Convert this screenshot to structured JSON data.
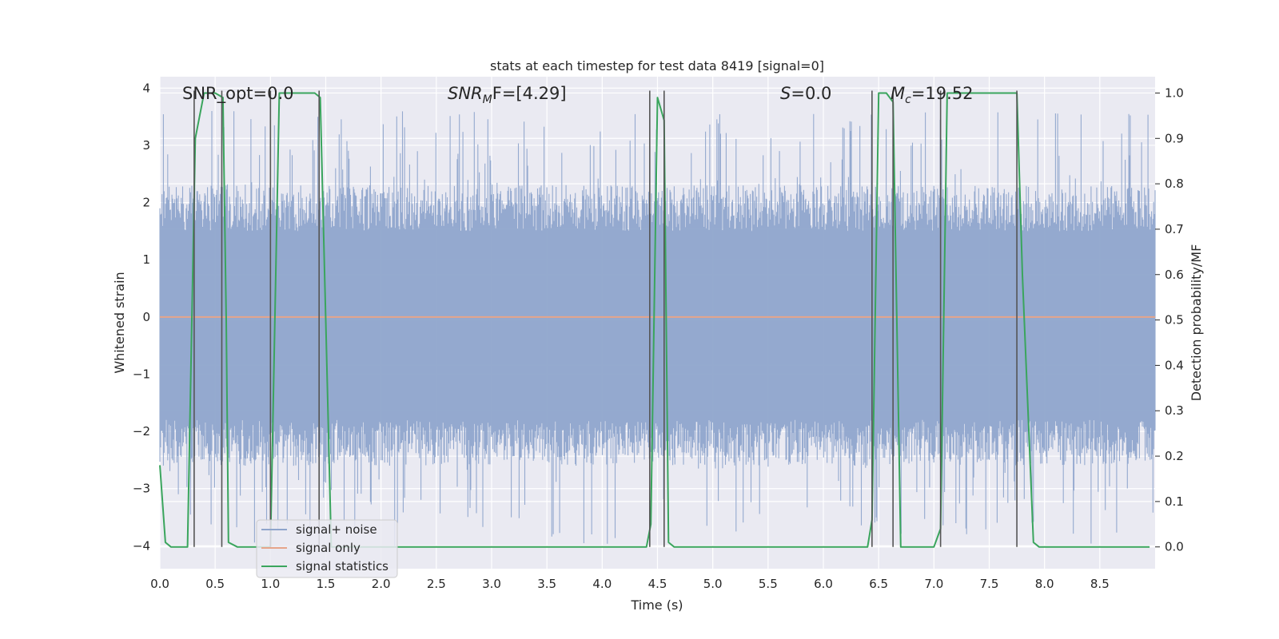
{
  "chart_data": {
    "type": "line",
    "title": "stats at each timestep for test data 8419 [signal=0]",
    "xlabel": "Time (s)",
    "ylabel": "Whitened strain",
    "y2label": "Detection probability/MF",
    "xlim": [
      0,
      9.0
    ],
    "ylim": [
      -4.4,
      4.2
    ],
    "y2lim": [
      -0.048,
      1.036
    ],
    "xticks": [
      "0.0",
      "0.5",
      "1.0",
      "1.5",
      "2.0",
      "2.5",
      "3.0",
      "3.5",
      "4.0",
      "4.5",
      "5.0",
      "5.5",
      "6.0",
      "6.5",
      "7.0",
      "7.5",
      "8.0",
      "8.5"
    ],
    "yticks": [
      "4",
      "3",
      "2",
      "1",
      "0",
      "−1",
      "−2",
      "−3",
      "−4"
    ],
    "y2ticks": [
      "1.0",
      "0.9",
      "0.8",
      "0.7",
      "0.6",
      "0.5",
      "0.4",
      "0.3",
      "0.2",
      "0.1",
      "0.0"
    ],
    "grid": true,
    "legend_position": "lower-left",
    "annotations": {
      "snr_opt": "SNR_opt=0.0",
      "snr_mf_italic": "SNR",
      "snr_mf_sub": "M",
      "snr_mf_rest": "F=[4.29]",
      "s_italic": "S",
      "s_rest": "=0.0",
      "mc_italic": "M",
      "mc_sub": "c",
      "mc_rest": "=19.52"
    },
    "series": [
      {
        "name": "signal+ noise",
        "color": "#8fa5cc",
        "noise_upper_envelope_dense": 1.5,
        "noise_lower_envelope_dense": -1.8,
        "noise_peak_max": 3.6,
        "noise_peak_min": -4.0
      },
      {
        "name": "signal only",
        "color": "#e6a58a",
        "x": [
          0,
          9.0
        ],
        "y": [
          0,
          0
        ]
      },
      {
        "name": "signal statistics",
        "color": "#3aa55d",
        "axis": "right",
        "x": [
          0.0,
          0.05,
          0.1,
          0.25,
          0.32,
          0.4,
          0.5,
          0.57,
          0.6,
          0.62,
          0.7,
          1.0,
          1.08,
          1.2,
          1.4,
          1.45,
          1.5,
          1.55,
          1.6,
          4.4,
          4.44,
          4.5,
          4.56,
          4.6,
          4.65,
          4.7,
          6.4,
          6.44,
          6.5,
          6.57,
          6.63,
          6.7,
          6.75,
          7.0,
          7.06,
          7.12,
          7.2,
          7.5,
          7.75,
          7.8,
          7.9,
          7.95,
          8.5,
          8.95
        ],
        "y": [
          0.18,
          0.01,
          0.0,
          0.0,
          0.9,
          1.0,
          1.0,
          0.99,
          0.5,
          0.01,
          0.0,
          0.0,
          1.0,
          1.0,
          1.0,
          0.99,
          0.5,
          0.0,
          0.0,
          0.0,
          0.05,
          0.99,
          0.94,
          0.01,
          0.0,
          0.0,
          0.0,
          0.06,
          1.0,
          1.0,
          0.98,
          0.0,
          0.0,
          0.0,
          0.04,
          1.0,
          1.0,
          1.0,
          1.0,
          0.6,
          0.01,
          0.0,
          0.0,
          0.0
        ]
      }
    ],
    "vertical_markers_x": [
      0.31,
      0.56,
      1.0,
      1.44,
      4.43,
      4.56,
      6.44,
      6.63,
      7.06,
      7.75
    ],
    "marker_color": "#555555"
  }
}
